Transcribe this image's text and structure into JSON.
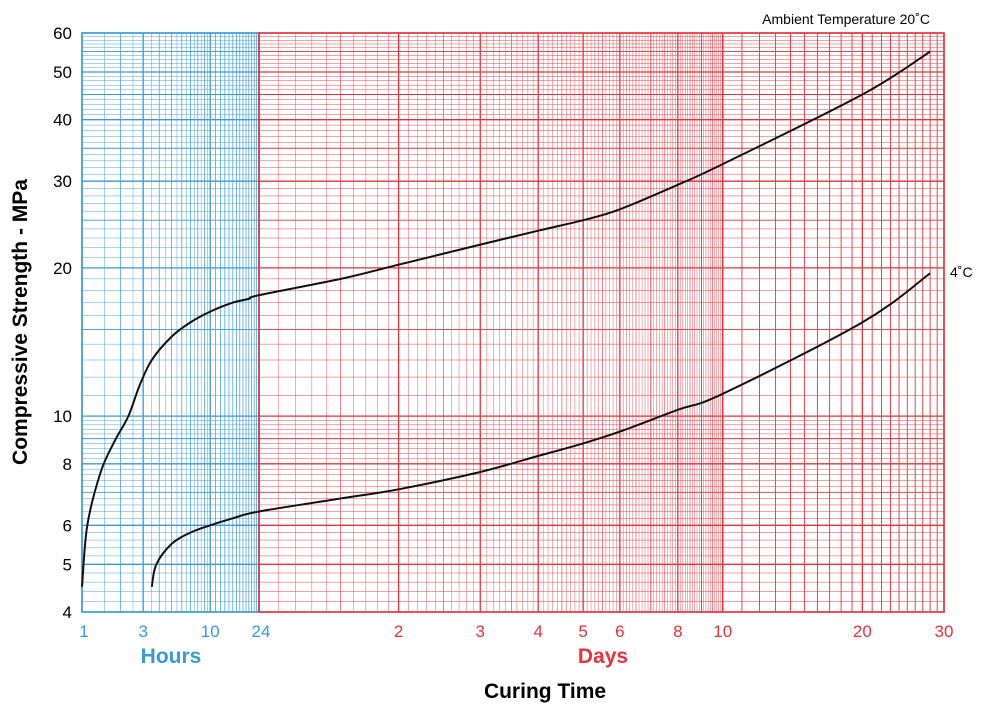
{
  "chart_data": {
    "type": "line",
    "title": "",
    "annotation": "Ambient Temperature 20˚C",
    "ylabel": "Compressive Strength - MPa",
    "xlabel": "Curing Time",
    "y_scale": "log",
    "ylim": [
      4,
      60
    ],
    "y_ticks": [
      4,
      5,
      6,
      8,
      10,
      20,
      30,
      40,
      50,
      60
    ],
    "x_scale": "log",
    "hours_label": "Hours",
    "days_label": "Days",
    "hours_ticks": [
      1,
      3,
      10,
      24
    ],
    "days_ticks": [
      2,
      3,
      4,
      5,
      6,
      8,
      10,
      20,
      30
    ],
    "colors": {
      "hours_grid": "#3a9ad9",
      "days_grid": "#e8323c",
      "curve": "#111111"
    },
    "series": [
      {
        "name": "",
        "hours": [
          [
            1,
            4.5
          ],
          [
            1.1,
            6.0
          ],
          [
            1.4,
            7.7
          ],
          [
            1.8,
            8.9
          ],
          [
            2.3,
            10.0
          ],
          [
            2.8,
            11.5
          ],
          [
            3.5,
            13.0
          ],
          [
            5,
            14.5
          ],
          [
            7,
            15.5
          ],
          [
            10,
            16.3
          ],
          [
            15,
            17.0
          ],
          [
            20,
            17.3
          ],
          [
            24,
            17.6
          ]
        ],
        "days": [
          [
            1.5,
            19.0
          ],
          [
            2,
            20.3
          ],
          [
            3,
            22.3
          ],
          [
            4,
            23.8
          ],
          [
            5,
            25.0
          ],
          [
            6,
            26.3
          ],
          [
            8,
            29.5
          ],
          [
            10,
            32.5
          ],
          [
            20,
            45.0
          ],
          [
            28,
            55.0
          ]
        ]
      },
      {
        "name": "4˚C",
        "hours": [
          [
            3.5,
            4.5
          ],
          [
            3.8,
            5.0
          ],
          [
            5,
            5.5
          ],
          [
            7,
            5.8
          ],
          [
            10,
            6.0
          ],
          [
            15,
            6.2
          ],
          [
            24,
            6.4
          ]
        ],
        "days": [
          [
            1.5,
            6.8
          ],
          [
            2,
            7.1
          ],
          [
            3,
            7.7
          ],
          [
            4,
            8.3
          ],
          [
            5,
            8.8
          ],
          [
            6,
            9.3
          ],
          [
            8,
            10.3
          ],
          [
            10,
            11.1
          ],
          [
            20,
            15.5
          ],
          [
            28,
            19.5
          ]
        ]
      }
    ]
  }
}
